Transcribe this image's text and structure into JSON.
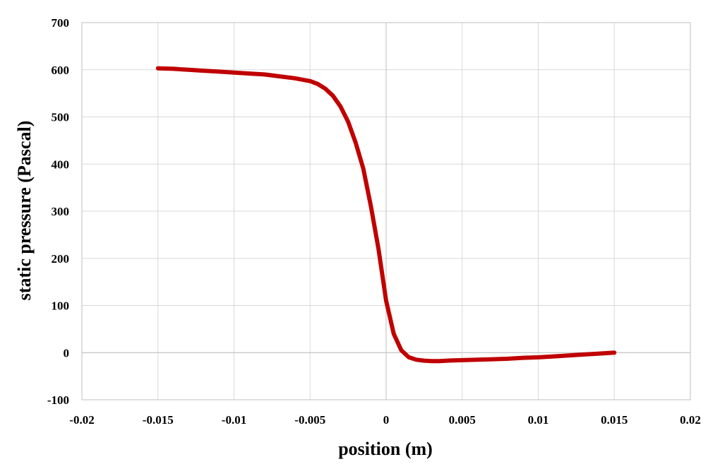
{
  "chart_data": {
    "type": "line",
    "title": "",
    "xlabel": "position (m)",
    "ylabel": "static pressure (Pascal)",
    "xlim": [
      -0.02,
      0.02
    ],
    "ylim": [
      -100,
      700
    ],
    "xticks": [
      -0.02,
      -0.015,
      -0.01,
      -0.005,
      0,
      0.005,
      0.01,
      0.015,
      0.02
    ],
    "xtick_labels": [
      "-0.02",
      "-0.015",
      "-0.01",
      "-0.005",
      "0",
      "0.005",
      "0.01",
      "0.015",
      "0.02"
    ],
    "yticks": [
      -100,
      0,
      100,
      200,
      300,
      400,
      500,
      600,
      700
    ],
    "ytick_labels": [
      "-100",
      "0",
      "100",
      "200",
      "300",
      "400",
      "500",
      "600",
      "700"
    ],
    "grid": true,
    "legend": "none",
    "series": [
      {
        "color": "#c00000",
        "x": [
          -0.015,
          -0.014,
          -0.013,
          -0.012,
          -0.011,
          -0.01,
          -0.009,
          -0.008,
          -0.007,
          -0.006,
          -0.005,
          -0.0045,
          -0.004,
          -0.0035,
          -0.003,
          -0.0025,
          -0.002,
          -0.0015,
          -0.001,
          -0.0005,
          0,
          0.0005,
          0.001,
          0.0015,
          0.002,
          0.0025,
          0.003,
          0.0035,
          0.004,
          0.005,
          0.006,
          0.007,
          0.008,
          0.009,
          0.01,
          0.011,
          0.012,
          0.013,
          0.014,
          0.015
        ],
        "y": [
          603,
          602,
          600,
          598,
          596,
          594,
          592,
          590,
          586,
          582,
          576,
          570,
          560,
          545,
          522,
          490,
          445,
          390,
          310,
          220,
          110,
          40,
          5,
          -10,
          -15,
          -17,
          -18,
          -18,
          -17,
          -16,
          -15,
          -14,
          -13,
          -11,
          -10,
          -8,
          -6,
          -4,
          -2,
          0
        ]
      }
    ]
  }
}
